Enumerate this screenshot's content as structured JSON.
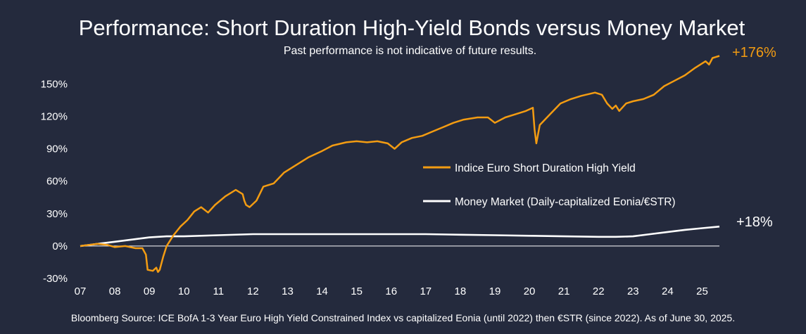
{
  "title": "Performance: Short Duration High-Yield Bonds versus Money Market",
  "subtitle": "Past performance is not indicative of future results.",
  "footer": "Bloomberg Source: ICE BofA 1-3 Year Euro High Yield Constrained Index vs capitalized Eonia (until 2022) then €STR (since 2022). As of June 30, 2025.",
  "colors": {
    "background": "#242a3d",
    "hy": "#f39c12",
    "mm": "#ffffff",
    "text": "#ffffff"
  },
  "chart_data": {
    "type": "line",
    "xlim": [
      2007,
      2025.5
    ],
    "ylim": [
      -30,
      175
    ],
    "x_tick_labels": [
      {
        "x": 2007,
        "label": "07"
      },
      {
        "x": 2008,
        "label": "08"
      },
      {
        "x": 2009,
        "label": "09"
      },
      {
        "x": 2010,
        "label": "10"
      },
      {
        "x": 2011,
        "label": "11"
      },
      {
        "x": 2012,
        "label": "12"
      },
      {
        "x": 2013,
        "label": "13"
      },
      {
        "x": 2014,
        "label": "14"
      },
      {
        "x": 2015,
        "label": "15"
      },
      {
        "x": 2016,
        "label": "16"
      },
      {
        "x": 2017,
        "label": "17"
      },
      {
        "x": 2018,
        "label": "18"
      },
      {
        "x": 2019,
        "label": "19"
      },
      {
        "x": 2020,
        "label": "20"
      },
      {
        "x": 2021,
        "label": "21"
      },
      {
        "x": 2022,
        "label": "22"
      },
      {
        "x": 2023,
        "label": "23"
      },
      {
        "x": 2024,
        "label": "24"
      },
      {
        "x": 2025,
        "label": "25"
      }
    ],
    "y_tick_labels": [
      {
        "y": -30,
        "label": "-30%"
      },
      {
        "y": 0,
        "label": "0%"
      },
      {
        "y": 30,
        "label": "30%"
      },
      {
        "y": 60,
        "label": "60%"
      },
      {
        "y": 90,
        "label": "90%"
      },
      {
        "y": 120,
        "label": "120%"
      },
      {
        "y": 150,
        "label": "150%"
      }
    ],
    "grid": "horizontal",
    "legend_position": "center-right",
    "series": [
      {
        "name": "Indice Euro Short Duration High Yield",
        "color": "#f39c12",
        "end_label": "+176%",
        "points": [
          [
            2007.0,
            0
          ],
          [
            2007.5,
            2
          ],
          [
            2007.8,
            1
          ],
          [
            2008.0,
            -1
          ],
          [
            2008.3,
            0
          ],
          [
            2008.6,
            -2
          ],
          [
            2008.8,
            -2
          ],
          [
            2008.9,
            -8
          ],
          [
            2008.95,
            -22
          ],
          [
            2009.1,
            -23
          ],
          [
            2009.2,
            -20
          ],
          [
            2009.25,
            -24
          ],
          [
            2009.3,
            -22
          ],
          [
            2009.4,
            -10
          ],
          [
            2009.5,
            0
          ],
          [
            2009.7,
            10
          ],
          [
            2009.9,
            18
          ],
          [
            2010.1,
            24
          ],
          [
            2010.3,
            32
          ],
          [
            2010.5,
            36
          ],
          [
            2010.7,
            31
          ],
          [
            2010.9,
            38
          ],
          [
            2011.2,
            46
          ],
          [
            2011.5,
            52
          ],
          [
            2011.7,
            48
          ],
          [
            2011.75,
            42
          ],
          [
            2011.8,
            38
          ],
          [
            2011.9,
            36
          ],
          [
            2012.1,
            42
          ],
          [
            2012.3,
            55
          ],
          [
            2012.6,
            58
          ],
          [
            2012.9,
            68
          ],
          [
            2013.2,
            74
          ],
          [
            2013.6,
            82
          ],
          [
            2014.0,
            88
          ],
          [
            2014.3,
            93
          ],
          [
            2014.7,
            96
          ],
          [
            2015.0,
            97
          ],
          [
            2015.3,
            96
          ],
          [
            2015.6,
            97
          ],
          [
            2015.9,
            95
          ],
          [
            2016.1,
            90
          ],
          [
            2016.3,
            96
          ],
          [
            2016.6,
            100
          ],
          [
            2016.9,
            102
          ],
          [
            2017.2,
            106
          ],
          [
            2017.5,
            110
          ],
          [
            2017.8,
            114
          ],
          [
            2018.1,
            117
          ],
          [
            2018.5,
            119
          ],
          [
            2018.8,
            119
          ],
          [
            2019.0,
            114
          ],
          [
            2019.3,
            119
          ],
          [
            2019.6,
            122
          ],
          [
            2019.9,
            125
          ],
          [
            2020.1,
            128
          ],
          [
            2020.15,
            108
          ],
          [
            2020.2,
            95
          ],
          [
            2020.3,
            112
          ],
          [
            2020.6,
            122
          ],
          [
            2020.9,
            132
          ],
          [
            2021.2,
            136
          ],
          [
            2021.5,
            139
          ],
          [
            2021.9,
            142
          ],
          [
            2022.1,
            140
          ],
          [
            2022.25,
            132
          ],
          [
            2022.4,
            127
          ],
          [
            2022.5,
            130
          ],
          [
            2022.6,
            125
          ],
          [
            2022.8,
            132
          ],
          [
            2023.0,
            134
          ],
          [
            2023.3,
            136
          ],
          [
            2023.6,
            140
          ],
          [
            2023.9,
            148
          ],
          [
            2024.2,
            153
          ],
          [
            2024.5,
            158
          ],
          [
            2024.8,
            165
          ],
          [
            2025.1,
            171
          ],
          [
            2025.2,
            168
          ],
          [
            2025.3,
            174
          ],
          [
            2025.5,
            176
          ]
        ]
      },
      {
        "name": "Money Market (Daily-capitalized Eonia/€STR)",
        "color": "#ffffff",
        "end_label": "+18%",
        "points": [
          [
            2007.0,
            0
          ],
          [
            2007.5,
            2
          ],
          [
            2008.0,
            4
          ],
          [
            2008.5,
            6
          ],
          [
            2009.0,
            8
          ],
          [
            2009.5,
            9
          ],
          [
            2010.0,
            9
          ],
          [
            2011.0,
            10
          ],
          [
            2012.0,
            11
          ],
          [
            2013.0,
            11
          ],
          [
            2014.0,
            11
          ],
          [
            2015.0,
            11
          ],
          [
            2016.0,
            11
          ],
          [
            2017.0,
            11
          ],
          [
            2018.0,
            10.5
          ],
          [
            2019.0,
            10
          ],
          [
            2020.0,
            9.5
          ],
          [
            2021.0,
            9
          ],
          [
            2022.0,
            8.5
          ],
          [
            2022.5,
            8.5
          ],
          [
            2023.0,
            9
          ],
          [
            2023.5,
            11
          ],
          [
            2024.0,
            13
          ],
          [
            2024.5,
            15
          ],
          [
            2025.0,
            16.5
          ],
          [
            2025.5,
            18
          ]
        ]
      }
    ]
  }
}
